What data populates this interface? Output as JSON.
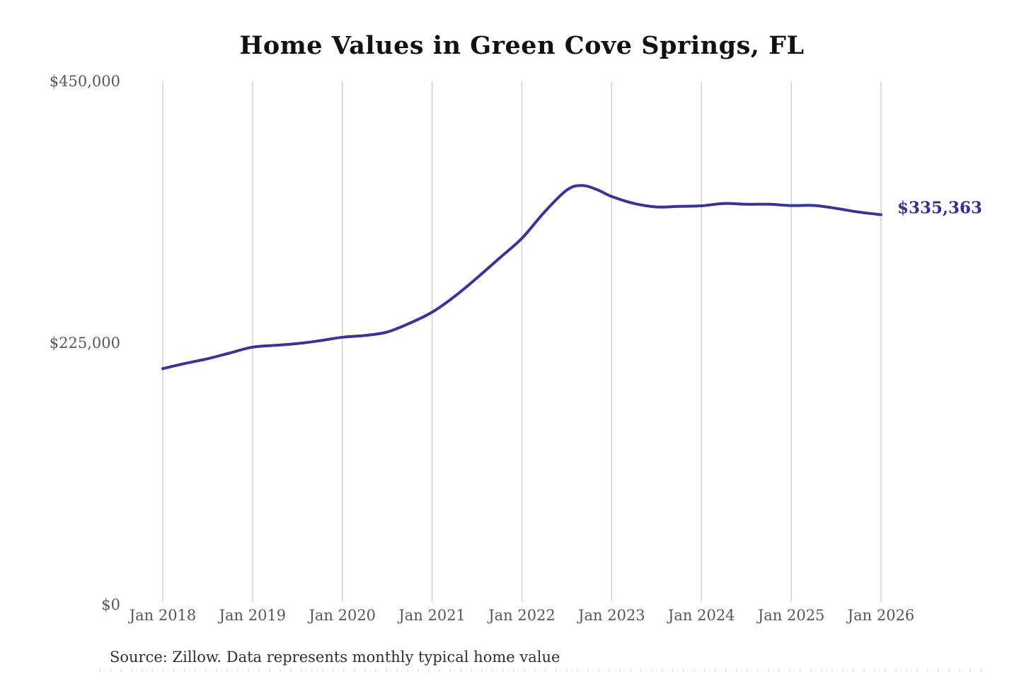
{
  "chart": {
    "title": "Home Values in Green Cove Springs, FL",
    "end_value_label": "$335,363",
    "source_note": "Source: Zillow. Data represents monthly typical home value",
    "colors": {
      "line": "#3b3494",
      "grid": "#cccccc",
      "axis_text": "#575757",
      "title_text": "#111111",
      "source_text": "#2f2f2f",
      "end_label_text": "#333090",
      "background": "#ffffff"
    }
  },
  "chart_data": {
    "type": "line",
    "title": "Home Values in Green Cove Springs, FL",
    "x": [
      "2018-01",
      "2018-04",
      "2018-07",
      "2018-10",
      "2019-01",
      "2019-04",
      "2019-07",
      "2019-10",
      "2020-01",
      "2020-04",
      "2020-07",
      "2020-10",
      "2021-01",
      "2021-04",
      "2021-07",
      "2021-10",
      "2022-01",
      "2022-04",
      "2022-07",
      "2022-09",
      "2022-11",
      "2023-01",
      "2023-04",
      "2023-07",
      "2023-10",
      "2024-01",
      "2024-04",
      "2024-07",
      "2024-10",
      "2025-01",
      "2025-04",
      "2025-07",
      "2025-10",
      "2026-01"
    ],
    "values": [
      203000,
      207500,
      211500,
      216500,
      221500,
      223000,
      224500,
      227000,
      230000,
      231500,
      234500,
      242000,
      251500,
      265000,
      281000,
      298000,
      315000,
      337500,
      356500,
      360500,
      357000,
      351000,
      345000,
      342000,
      342500,
      343000,
      345000,
      344300,
      344300,
      343200,
      343300,
      340800,
      337600,
      335363
    ],
    "x_tick_labels": [
      "Jan 2018",
      "Jan 2019",
      "Jan 2020",
      "Jan 2021",
      "Jan 2022",
      "Jan 2023",
      "Jan 2024",
      "Jan 2025",
      "Jan 2026"
    ],
    "y_ticks": [
      {
        "label": "$450,000",
        "value": 450000
      },
      {
        "label": "$225,000",
        "value": 225000
      },
      {
        "label": "$0",
        "value": 0
      }
    ],
    "ylim": [
      0,
      450000
    ],
    "xlim": [
      "2018-01",
      "2026-01"
    ],
    "grid": "vertical-only",
    "legend": "none",
    "end_annotation": {
      "label": "$335,363",
      "value": 335363,
      "x": "2026-01"
    },
    "source": "Source: Zillow. Data represents monthly typical home value"
  }
}
